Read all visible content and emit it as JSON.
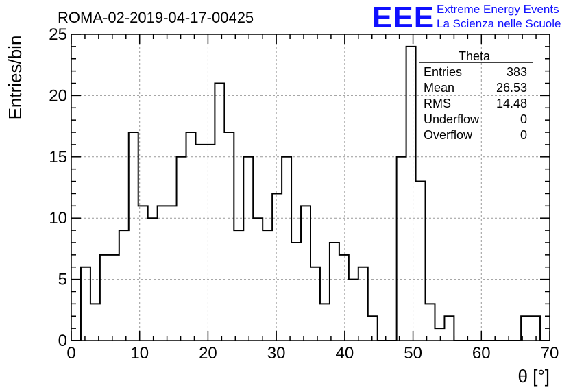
{
  "title": "ROMA-02-2019-04-17-00425",
  "logo": {
    "mark": "EEE",
    "line1": "Extreme Energy Events",
    "line2": "La Scienza nelle Scuole",
    "color": "#1010ff"
  },
  "stats": {
    "title": "Theta",
    "rows": [
      {
        "label": "Entries",
        "value": "383"
      },
      {
        "label": "Mean",
        "value": "26.53"
      },
      {
        "label": "RMS",
        "value": "14.48"
      },
      {
        "label": "Underflow",
        "value": "0"
      },
      {
        "label": "Overflow",
        "value": "0"
      }
    ]
  },
  "chart_data": {
    "type": "bar",
    "style": "step-histogram",
    "xlabel": "θ [°]",
    "ylabel": "Entries/bin",
    "xlim": [
      0,
      70
    ],
    "ylim": [
      0,
      25
    ],
    "bin_width": 1.4,
    "bin_start": 0,
    "xticks": [
      0,
      10,
      20,
      30,
      40,
      50,
      60,
      70
    ],
    "yticks": [
      0,
      5,
      10,
      15,
      20,
      25
    ],
    "grid": true,
    "values": [
      0,
      6,
      3,
      7,
      7,
      9,
      17,
      11,
      10,
      11,
      11,
      15,
      17,
      16,
      16,
      21,
      17,
      9,
      15,
      10,
      9,
      12,
      15,
      8,
      11,
      6,
      3,
      8,
      7,
      5,
      6,
      2,
      0,
      0,
      15,
      24,
      13,
      3,
      1,
      2,
      0,
      0,
      0,
      0,
      0,
      0,
      0,
      2,
      2,
      0
    ]
  }
}
